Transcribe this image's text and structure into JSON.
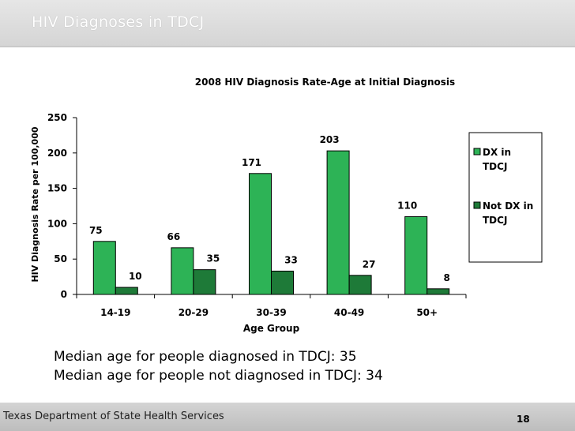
{
  "slide": {
    "title": "HIV Diagnoses in TDCJ",
    "notes": [
      "Median age for people diagnosed in TDCJ: 35",
      "Median age for people not diagnosed in TDCJ: 34"
    ],
    "footer": "Texas Department of State Health Services",
    "page_number": "18"
  },
  "chart_data": {
    "type": "bar",
    "title": "2008 HIV Diagnosis Rate-Age at Initial Diagnosis",
    "xlabel": "Age Group",
    "ylabel": "HIV Diagnosis Rate per 100,000",
    "categories": [
      "14-19",
      "20-29",
      "30-39",
      "40-49",
      "50+"
    ],
    "ylim": [
      0,
      250
    ],
    "yticks": [
      0,
      50,
      100,
      150,
      200,
      250
    ],
    "grid": false,
    "legend_position": "right",
    "series": [
      {
        "name": "DX in TDCJ",
        "values": [
          75,
          66,
          171,
          203,
          110
        ],
        "color": "#2db356"
      },
      {
        "name": "Not DX in TDCJ",
        "values": [
          10,
          35,
          33,
          27,
          8
        ],
        "color": "#1e7a38"
      }
    ]
  }
}
